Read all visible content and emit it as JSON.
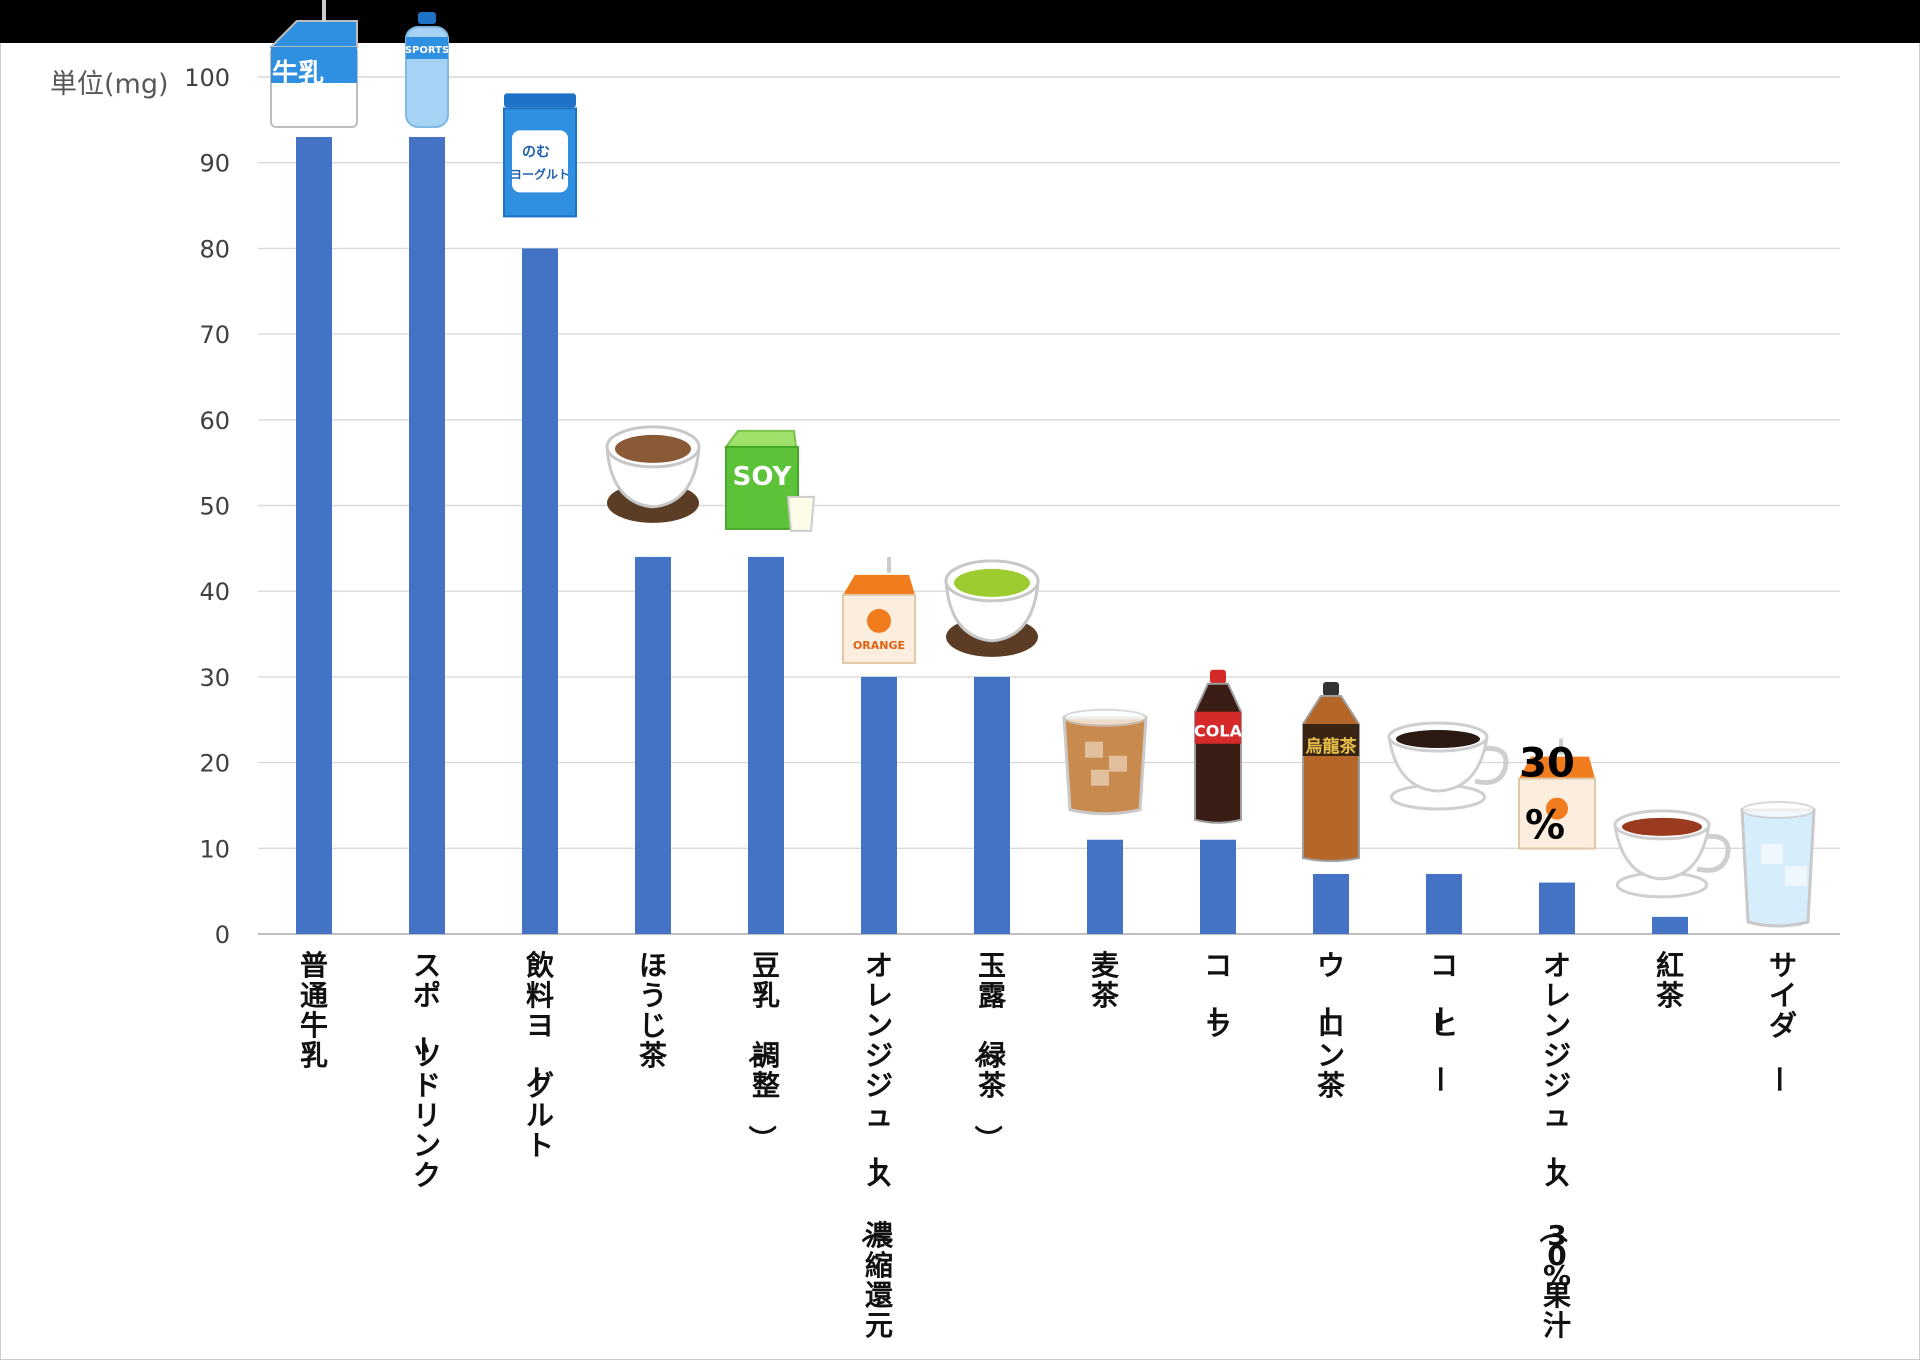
{
  "chart_data": {
    "type": "bar",
    "ylabel": "単位(mg)",
    "ylim": [
      0,
      100
    ],
    "yticks": [
      0,
      10,
      20,
      30,
      40,
      50,
      60,
      70,
      80,
      90,
      100
    ],
    "grid": true,
    "categories": [
      "普通牛乳",
      "スポーツドリンク",
      "飲料ヨーグルト",
      "ほうじ茶",
      "豆乳（調整）",
      "オレンジジュース（濃縮還元）",
      "玉露（緑茶）",
      "麦茶",
      "コーラ",
      "ウーロン茶",
      "コーヒー",
      "オレンジジュース（30%果汁）",
      "紅茶",
      "サイダー"
    ],
    "values": [
      93,
      93,
      80,
      44,
      44,
      30,
      30,
      11,
      11,
      7,
      7,
      6,
      2,
      0
    ],
    "icons": [
      "milk-carton-icon",
      "sports-drink-bottle-icon",
      "drinking-yogurt-bottle-icon",
      "hojicha-cup-icon",
      "soy-milk-carton-icon",
      "orange-juice-carton-icon",
      "green-tea-cup-icon",
      "barley-tea-glass-icon",
      "cola-bottle-icon",
      "oolong-tea-bottle-icon",
      "coffee-cup-icon",
      "orange-juice-30-carton-icon",
      "black-tea-cup-icon",
      "soda-glass-icon"
    ],
    "icon_texts": {
      "milk": "牛乳",
      "sports": "SPORTS",
      "yogurt_1": "のむ",
      "yogurt_2": "ヨーグルト",
      "soy": "SOY",
      "orange": "ORANGE",
      "cola": "COLA",
      "oolong": "烏龍茶",
      "juice30_1": "30",
      "juice30_2": "%"
    },
    "colors": {
      "bar": "#4472c4",
      "grid": "#d9d9d9",
      "axis": "#bfbfbf"
    }
  }
}
